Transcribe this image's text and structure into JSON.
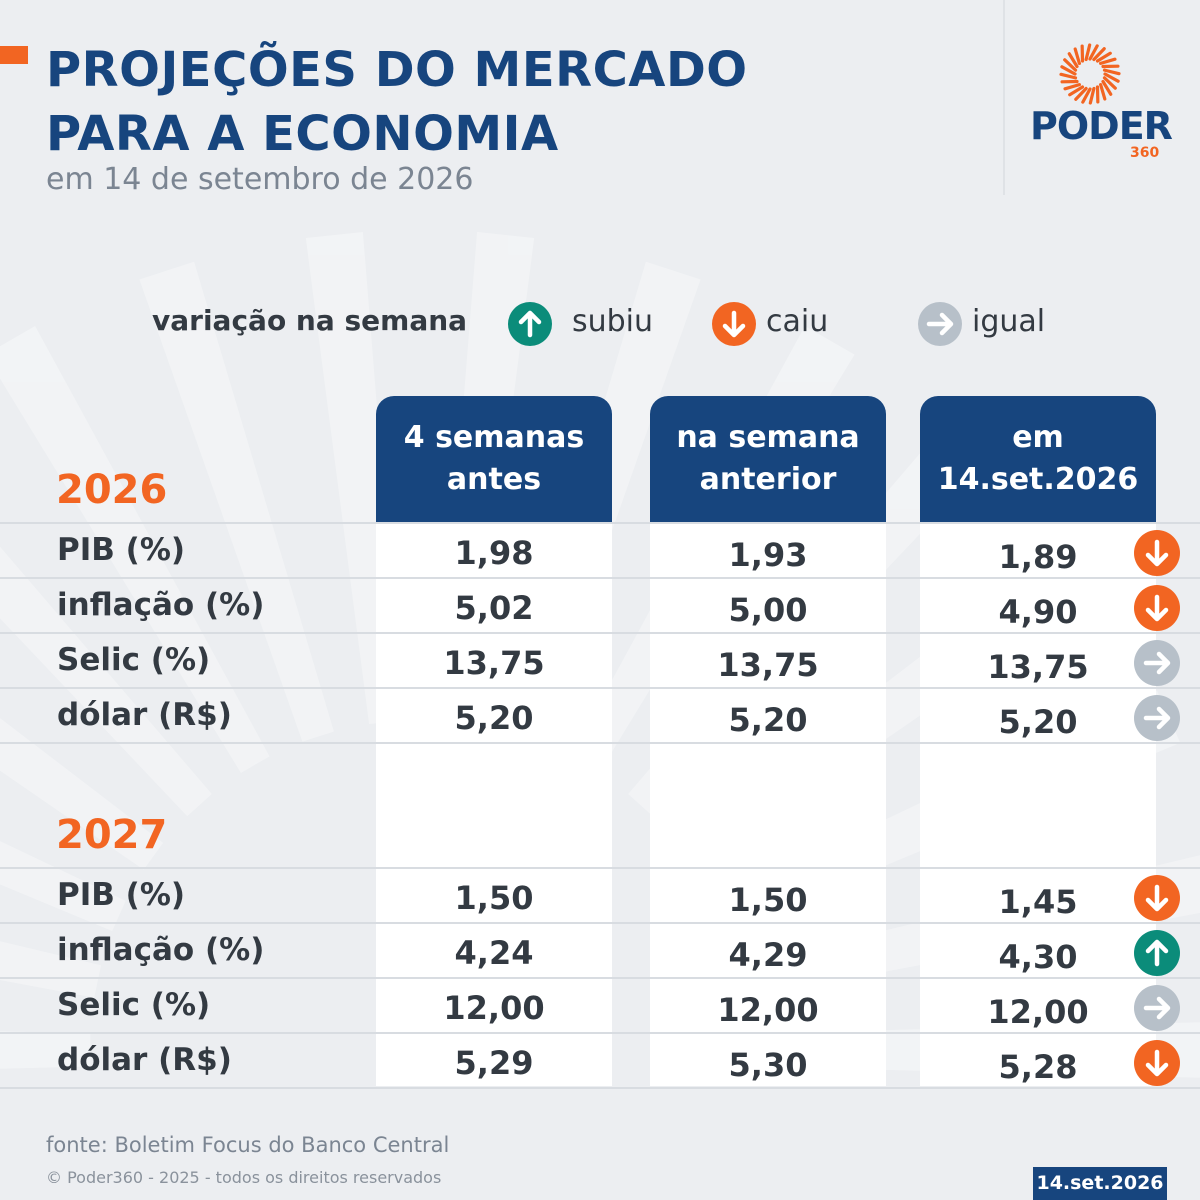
{
  "header": {
    "title_line1": "PROJEÇÕES DO MERCADO",
    "title_line2": "PARA A ECONOMIA",
    "subtitle": "em 14 de setembro de 2026"
  },
  "logo": {
    "word": "PODER",
    "number": "360"
  },
  "legend": {
    "title": "variação na semana",
    "items": [
      {
        "label": "subiu",
        "icon": "arrow-up-icon",
        "color": "#0b8c7a"
      },
      {
        "label": "caiu",
        "icon": "arrow-down-icon",
        "color": "#f26522"
      },
      {
        "label": "igual",
        "icon": "arrow-right-icon",
        "color": "#b7c0c9"
      }
    ]
  },
  "columns": [
    {
      "line1": "4 semanas",
      "line2": "antes"
    },
    {
      "line1": "na semana",
      "line2": "anterior"
    },
    {
      "line1": "em",
      "line2": "14.set.2026"
    }
  ],
  "chart_data": {
    "type": "table",
    "columns": [
      "4 semanas antes",
      "na semana anterior",
      "em 14.set.2026"
    ],
    "groups": [
      {
        "year": "2026",
        "rows": [
          {
            "label": "PIB (%)",
            "values": [
              "1,98",
              "1,93",
              "1,89"
            ],
            "trend": "caiu"
          },
          {
            "label": "inflação (%)",
            "values": [
              "5,02",
              "5,00",
              "4,90"
            ],
            "trend": "caiu"
          },
          {
            "label": "Selic (%)",
            "values": [
              "13,75",
              "13,75",
              "13,75"
            ],
            "trend": "igual"
          },
          {
            "label": "dólar (R$)",
            "values": [
              "5,20",
              "5,20",
              "5,20"
            ],
            "trend": "igual"
          }
        ]
      },
      {
        "year": "2027",
        "rows": [
          {
            "label": "PIB (%)",
            "values": [
              "1,50",
              "1,50",
              "1,45"
            ],
            "trend": "caiu"
          },
          {
            "label": "inflação (%)",
            "values": [
              "4,24",
              "4,29",
              "4,30"
            ],
            "trend": "subiu"
          },
          {
            "label": "Selic (%)",
            "values": [
              "12,00",
              "12,00",
              "12,00"
            ],
            "trend": "igual"
          },
          {
            "label": "dólar (R$)",
            "values": [
              "5,29",
              "5,30",
              "5,28"
            ],
            "trend": "caiu"
          }
        ]
      }
    ]
  },
  "footer": {
    "source": "fonte: Boletim Focus do Banco Central",
    "copyright": "© Poder360 - 2025 - todos os direitos reservados",
    "date": "14.set.2026"
  },
  "colors": {
    "brand_blue": "#17457e",
    "brand_orange": "#f26522",
    "up": "#0b8c7a",
    "down": "#f26522",
    "equal": "#b7c0c9"
  }
}
